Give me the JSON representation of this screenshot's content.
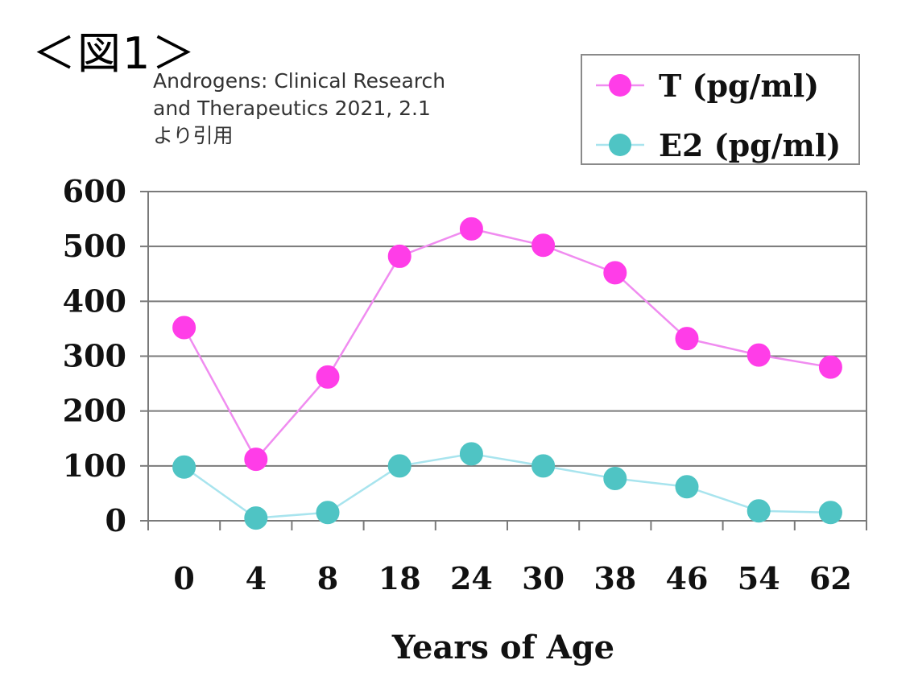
{
  "figure": {
    "label": "＜図1＞",
    "citation_lines": [
      "Androgens:  Clinical  Research",
      "and Therapeutics 2021, 2.1",
      "より引用"
    ]
  },
  "chart_data": {
    "type": "line",
    "title": "",
    "xlabel": "Years of Age",
    "ylabel": "",
    "categories": [
      "0",
      "4",
      "8",
      "18",
      "24",
      "30",
      "38",
      "46",
      "54",
      "62"
    ],
    "ylim": [
      0,
      600
    ],
    "yticks": [
      0,
      100,
      200,
      300,
      400,
      500,
      600
    ],
    "grid": true,
    "legend_position": "top-right",
    "series": [
      {
        "name": "T (pg/ml)",
        "color": "#ff3de8",
        "line_color": "#f08cf0",
        "values": [
          352,
          112,
          262,
          482,
          532,
          502,
          452,
          332,
          302,
          280
        ]
      },
      {
        "name": "E2 (pg/ml)",
        "color": "#4fc4c4",
        "line_color": "#a8e4ee",
        "values": [
          98,
          5,
          15,
          100,
          122,
          100,
          77,
          62,
          18,
          15
        ]
      }
    ]
  }
}
